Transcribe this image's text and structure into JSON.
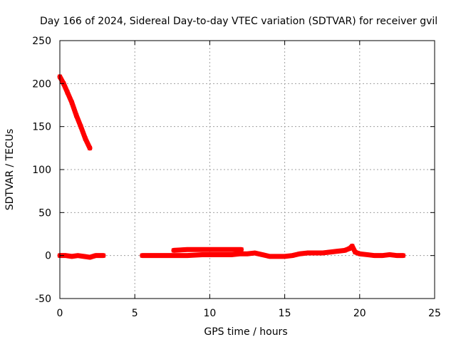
{
  "chart_data": {
    "type": "scatter",
    "title": "Day 166 of 2024, Sidereal Day-to-day VTEC variation (SDTVAR) for receiver gvil",
    "xlabel": "GPS time / hours",
    "ylabel": "SDTVAR / TECUs",
    "xlim": [
      0,
      25
    ],
    "ylim": [
      -50,
      250
    ],
    "xticks": [
      0,
      5,
      10,
      15,
      20,
      25
    ],
    "yticks": [
      -50,
      0,
      50,
      100,
      150,
      200,
      250
    ],
    "grid": true,
    "series_color": "#ff0000",
    "series": [
      {
        "values": [
          [
            0.0,
            208
          ],
          [
            0.25,
            200
          ],
          [
            0.5,
            190
          ],
          [
            0.8,
            178
          ],
          [
            1.1,
            163
          ],
          [
            1.4,
            150
          ],
          [
            1.7,
            136
          ],
          [
            2.0,
            125
          ]
        ]
      },
      {
        "values": [
          [
            0.0,
            0
          ],
          [
            0.4,
            0
          ],
          [
            0.8,
            -1
          ],
          [
            1.2,
            0
          ],
          [
            1.6,
            -1
          ],
          [
            2.0,
            -2
          ],
          [
            2.4,
            0
          ],
          [
            2.9,
            0
          ]
        ]
      },
      {
        "values": [
          [
            7.6,
            6
          ],
          [
            8.5,
            7
          ],
          [
            9.5,
            7
          ],
          [
            10.5,
            7
          ],
          [
            11.5,
            7
          ],
          [
            12.1,
            7
          ]
        ]
      },
      {
        "values": [
          [
            5.5,
            0
          ],
          [
            6.5,
            0
          ],
          [
            7.5,
            0
          ],
          [
            8.5,
            0
          ],
          [
            9.5,
            1
          ],
          [
            10.5,
            1
          ],
          [
            11.5,
            1
          ],
          [
            12.0,
            2
          ],
          [
            12.5,
            2
          ],
          [
            13.0,
            3
          ],
          [
            13.5,
            1
          ],
          [
            14.0,
            -1
          ],
          [
            14.5,
            -1
          ],
          [
            15.0,
            -1
          ],
          [
            15.5,
            0
          ],
          [
            16.0,
            2
          ],
          [
            16.5,
            3
          ],
          [
            17.0,
            3
          ],
          [
            17.5,
            3
          ],
          [
            18.0,
            4
          ],
          [
            18.5,
            5
          ],
          [
            19.0,
            6
          ],
          [
            19.3,
            8
          ],
          [
            19.5,
            11
          ],
          [
            19.7,
            4
          ],
          [
            20.0,
            2
          ],
          [
            20.5,
            1
          ],
          [
            21.0,
            0
          ],
          [
            21.5,
            0
          ],
          [
            22.0,
            1
          ],
          [
            22.5,
            0
          ],
          [
            22.9,
            0
          ]
        ]
      }
    ]
  }
}
